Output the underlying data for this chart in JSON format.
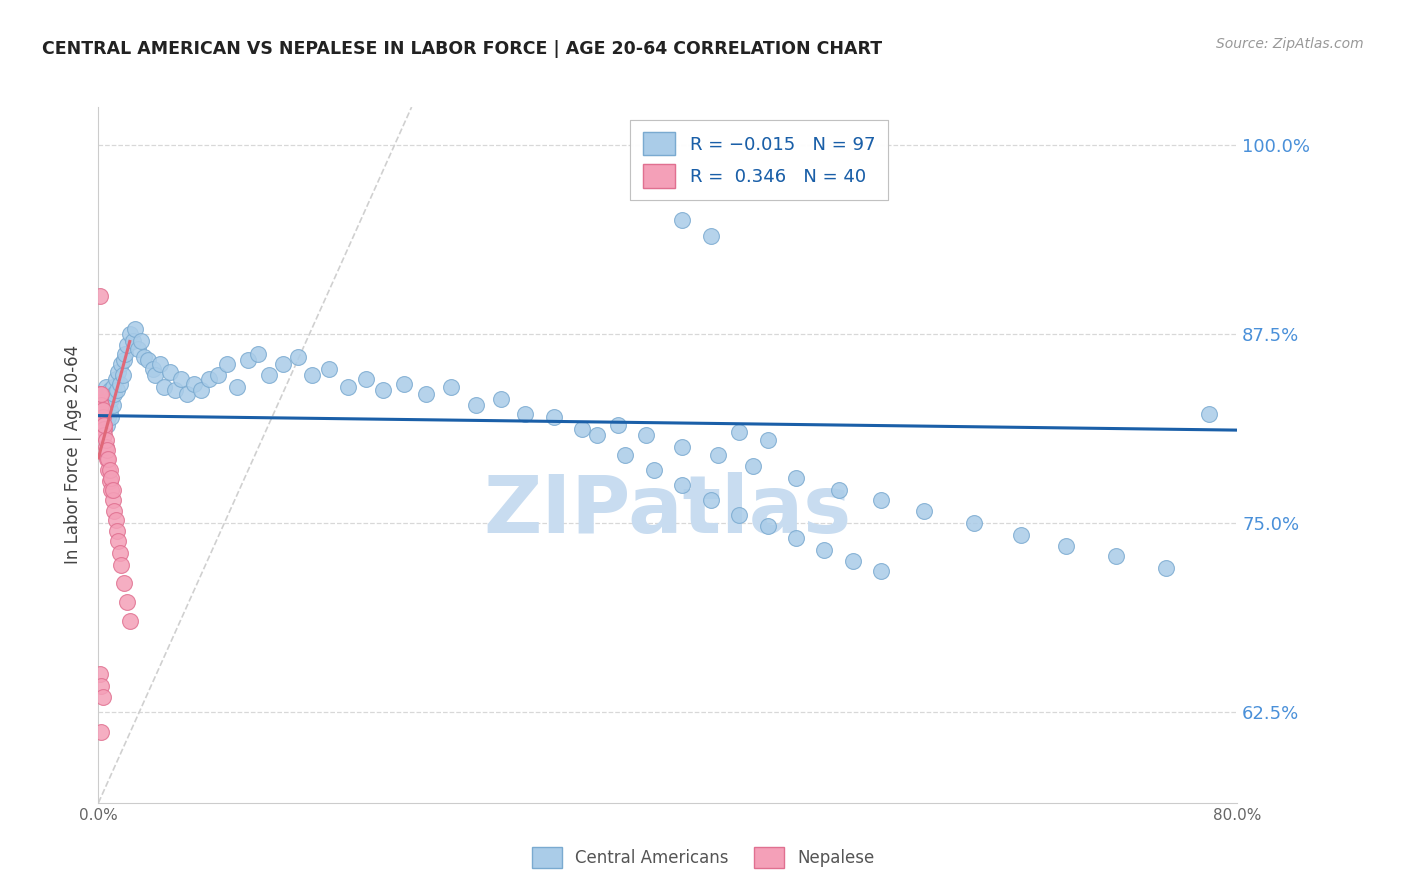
{
  "title": "CENTRAL AMERICAN VS NEPALESE IN LABOR FORCE | AGE 20-64 CORRELATION CHART",
  "source_text": "Source: ZipAtlas.com",
  "ylabel": "In Labor Force | Age 20-64",
  "xlim": [
    0.0,
    0.8
  ],
  "ylim": [
    0.565,
    1.025
  ],
  "ytick_vals": [
    0.625,
    0.75,
    0.875,
    1.0
  ],
  "ytick_labels": [
    "62.5%",
    "75.0%",
    "87.5%",
    "100.0%"
  ],
  "blue_trend_slope": -0.012,
  "blue_trend_intercept": 0.821,
  "pink_trend_slope": 3.5,
  "pink_trend_intercept": 0.793,
  "ref_line_color": "#d0d0d0",
  "blue_line_color": "#1a5fa8",
  "pink_line_color": "#e06878",
  "blue_dot_facecolor": "#aacce8",
  "blue_dot_edgecolor": "#7aaad0",
  "pink_dot_facecolor": "#f4a0b8",
  "pink_dot_edgecolor": "#e07090",
  "grid_color": "#d8d8d8",
  "background_color": "#ffffff",
  "watermark_text": "ZIPatlas",
  "watermark_color": "#c8dcf0",
  "title_color": "#222222",
  "source_color": "#999999",
  "ylabel_color": "#444444",
  "yaxis_label_color": "#4a90d9",
  "xaxis_label_color": "#666666",
  "blue_scatter_x": [
    0.001,
    0.002,
    0.003,
    0.003,
    0.004,
    0.004,
    0.005,
    0.005,
    0.006,
    0.006,
    0.007,
    0.007,
    0.008,
    0.008,
    0.009,
    0.009,
    0.01,
    0.01,
    0.011,
    0.012,
    0.013,
    0.014,
    0.015,
    0.016,
    0.017,
    0.018,
    0.019,
    0.02,
    0.022,
    0.024,
    0.026,
    0.028,
    0.03,
    0.032,
    0.035,
    0.038,
    0.04,
    0.043,
    0.046,
    0.05,
    0.054,
    0.058,
    0.062,
    0.067,
    0.072,
    0.078,
    0.084,
    0.09,
    0.097,
    0.105,
    0.112,
    0.12,
    0.13,
    0.14,
    0.15,
    0.162,
    0.175,
    0.188,
    0.2,
    0.215,
    0.23,
    0.248,
    0.265,
    0.283,
    0.3,
    0.32,
    0.34,
    0.365,
    0.385,
    0.41,
    0.435,
    0.46,
    0.49,
    0.52,
    0.55,
    0.58,
    0.615,
    0.648,
    0.68,
    0.715,
    0.75,
    0.78,
    0.35,
    0.37,
    0.39,
    0.41,
    0.43,
    0.45,
    0.47,
    0.49,
    0.51,
    0.53,
    0.55,
    0.41,
    0.43,
    0.45,
    0.47
  ],
  "blue_scatter_y": [
    0.82,
    0.825,
    0.815,
    0.83,
    0.818,
    0.835,
    0.822,
    0.84,
    0.828,
    0.815,
    0.835,
    0.82,
    0.825,
    0.838,
    0.82,
    0.832,
    0.828,
    0.84,
    0.835,
    0.845,
    0.838,
    0.85,
    0.842,
    0.855,
    0.848,
    0.858,
    0.862,
    0.868,
    0.875,
    0.87,
    0.878,
    0.865,
    0.87,
    0.86,
    0.858,
    0.852,
    0.848,
    0.855,
    0.84,
    0.85,
    0.838,
    0.845,
    0.835,
    0.842,
    0.838,
    0.845,
    0.848,
    0.855,
    0.84,
    0.858,
    0.862,
    0.848,
    0.855,
    0.86,
    0.848,
    0.852,
    0.84,
    0.845,
    0.838,
    0.842,
    0.835,
    0.84,
    0.828,
    0.832,
    0.822,
    0.82,
    0.812,
    0.815,
    0.808,
    0.8,
    0.795,
    0.788,
    0.78,
    0.772,
    0.765,
    0.758,
    0.75,
    0.742,
    0.735,
    0.728,
    0.72,
    0.822,
    0.808,
    0.795,
    0.785,
    0.775,
    0.765,
    0.755,
    0.748,
    0.74,
    0.732,
    0.725,
    0.718,
    0.95,
    0.94,
    0.81,
    0.805
  ],
  "pink_scatter_x": [
    0.001,
    0.001,
    0.001,
    0.001,
    0.002,
    0.002,
    0.002,
    0.002,
    0.003,
    0.003,
    0.003,
    0.004,
    0.004,
    0.004,
    0.005,
    0.005,
    0.006,
    0.006,
    0.007,
    0.007,
    0.008,
    0.008,
    0.009,
    0.009,
    0.01,
    0.01,
    0.011,
    0.012,
    0.013,
    0.014,
    0.015,
    0.016,
    0.018,
    0.02,
    0.022,
    0.001,
    0.002,
    0.003,
    0.001,
    0.002
  ],
  "pink_scatter_y": [
    0.82,
    0.825,
    0.83,
    0.835,
    0.818,
    0.822,
    0.828,
    0.835,
    0.815,
    0.82,
    0.825,
    0.812,
    0.808,
    0.815,
    0.8,
    0.805,
    0.792,
    0.798,
    0.785,
    0.792,
    0.778,
    0.785,
    0.772,
    0.78,
    0.765,
    0.772,
    0.758,
    0.752,
    0.745,
    0.738,
    0.73,
    0.722,
    0.71,
    0.698,
    0.685,
    0.65,
    0.642,
    0.635,
    0.9,
    0.612
  ]
}
